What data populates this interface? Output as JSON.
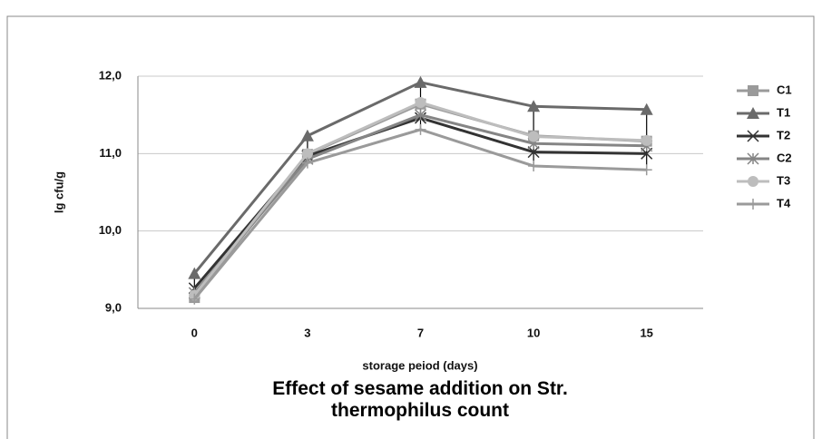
{
  "chart_data": {
    "type": "line",
    "title": "Effect of sesame addition on Str. thermophilus count",
    "x_label": "storage peiod (days)",
    "y_label": "lg cfu/g",
    "categories": [
      "0",
      "3",
      "7",
      "10",
      "15"
    ],
    "series": [
      {
        "name": "C1",
        "color": "#9a9a9a",
        "marker": "square",
        "values": [
          9.14,
          10.99,
          11.64,
          11.23,
          11.16
        ]
      },
      {
        "name": "T1",
        "color": "#6a6a6a",
        "marker": "triangle",
        "values": [
          9.45,
          11.23,
          11.92,
          11.61,
          11.57
        ]
      },
      {
        "name": "T2",
        "color": "#333333",
        "marker": "x",
        "values": [
          9.26,
          10.97,
          11.46,
          11.02,
          11.0
        ]
      },
      {
        "name": "C2",
        "color": "#858585",
        "marker": "asterisk",
        "values": [
          9.2,
          10.93,
          11.5,
          11.13,
          11.1
        ]
      },
      {
        "name": "T3",
        "color": "#bdbdbd",
        "marker": "circle",
        "values": [
          9.17,
          11.0,
          11.66,
          11.22,
          11.17
        ]
      },
      {
        "name": "T4",
        "color": "#9a9a9a",
        "marker": "plus",
        "values": [
          9.12,
          10.88,
          11.31,
          10.84,
          10.79
        ]
      }
    ],
    "ylim": [
      9,
      12
    ],
    "yticks": [
      {
        "value": 9,
        "label": "9,0"
      },
      {
        "value": 10,
        "label": "10,0"
      },
      {
        "value": 11,
        "label": "11,0"
      },
      {
        "value": 12,
        "label": "12,0"
      }
    ],
    "grid": true,
    "high_low_lines": true,
    "legend": "right"
  }
}
